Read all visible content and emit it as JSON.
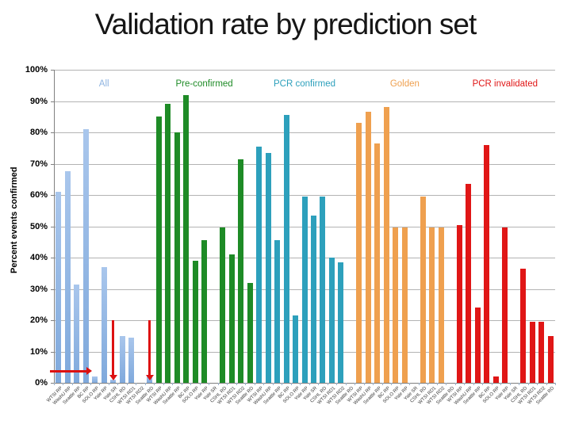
{
  "slide": {
    "title": "Validation rate by prediction set"
  },
  "chart_data": {
    "type": "bar",
    "title": "Validation rate by prediction set",
    "xlabel": "",
    "ylabel": "Percent events confirmed",
    "ylim": [
      0,
      100
    ],
    "ytick_step": 10,
    "ytick_labels": [
      "0%",
      "10%",
      "20%",
      "30%",
      "40%",
      "50%",
      "60%",
      "70%",
      "80%",
      "90%",
      "100%"
    ],
    "grid": true,
    "legend_position": "top-inside",
    "categories": [
      "WTSI RP",
      "WashU RP",
      "Seattle RP",
      "BC RP",
      "SOLO RP",
      "Yale RP",
      "Yale SR",
      "CSHL RD",
      "WTSI RD1",
      "WTSI RD2",
      "Seattle RD"
    ],
    "series": [
      {
        "name": "All",
        "color": "#8fb4e1",
        "gradient": [
          "#a9c6ec",
          "#7fa9dc"
        ],
        "values": [
          61,
          67.5,
          31.5,
          81,
          2,
          37,
          1,
          15,
          14.5,
          0,
          2.5
        ]
      },
      {
        "name": "Pre-confirmed",
        "color": "#1e8b26",
        "values": [
          85,
          89,
          80,
          92,
          39,
          45.5,
          0,
          49.5,
          41,
          71.5,
          32
        ]
      },
      {
        "name": "PCR confirmed",
        "color": "#2da0bc",
        "values": [
          75.5,
          73.5,
          45.5,
          85.5,
          21.5,
          59.5,
          53.5,
          59.5,
          40,
          38.5,
          0
        ]
      },
      {
        "name": "Golden",
        "color": "#efa04f",
        "values": [
          83,
          86.5,
          76.5,
          88,
          49.5,
          49.5,
          0,
          59.5,
          49.5,
          49.5,
          0
        ]
      },
      {
        "name": "PCR invalidated",
        "color": "#e01616",
        "values": [
          50.5,
          63.5,
          24,
          76,
          2,
          49.5,
          0,
          36.5,
          19.5,
          19.5,
          15
        ]
      }
    ],
    "annotations": {
      "arrow_color": "#dd1111",
      "horizontal_arrow": {
        "series": "All",
        "category": "SOLO RP",
        "y_percent": 3.8
      },
      "vertical_arrows": [
        {
          "series": "All",
          "category": "Yale SR",
          "from_percent": 20,
          "to_percent": 0.8
        },
        {
          "series": "All",
          "category": "Seattle RD",
          "from_percent": 20,
          "to_percent": 0.8
        }
      ]
    }
  }
}
